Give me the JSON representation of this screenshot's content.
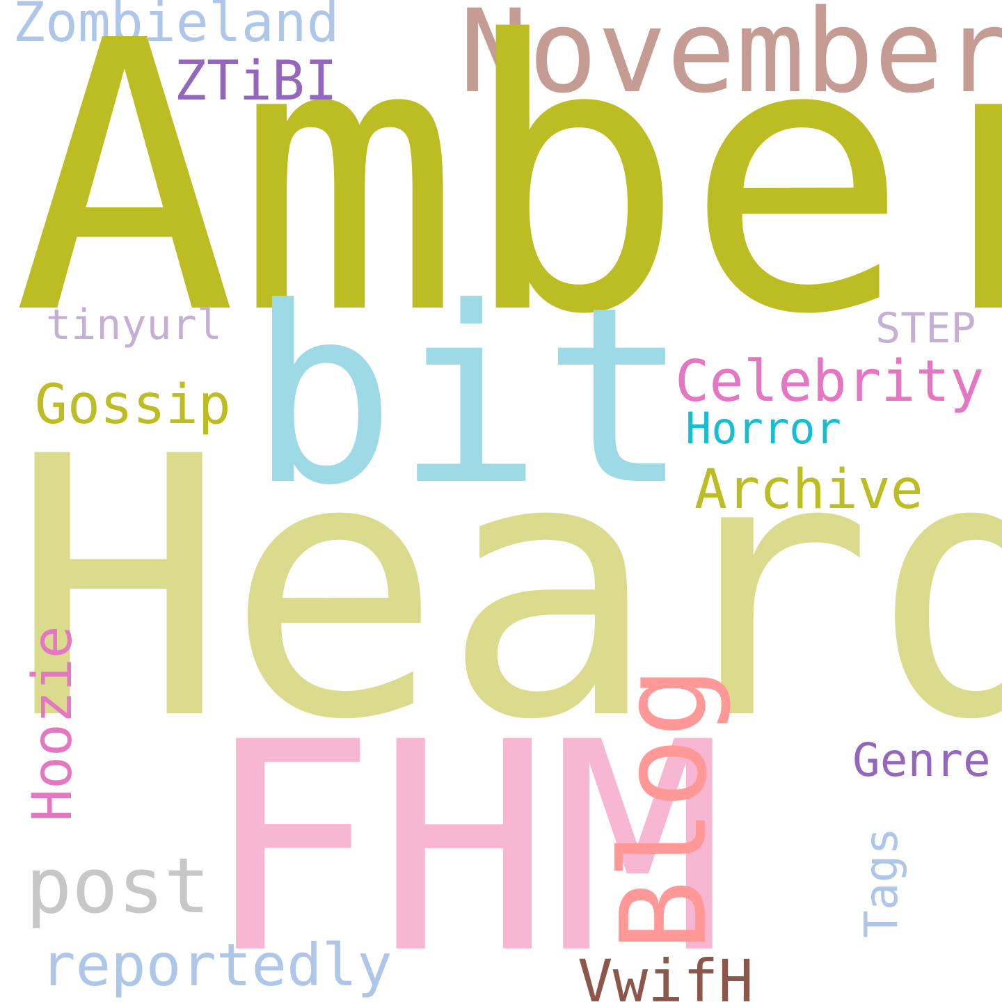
{
  "words": {
    "amber": {
      "text": "Amber",
      "color": "#bcbd22"
    },
    "heard": {
      "text": "Heard",
      "color": "#dbdb8d"
    },
    "fhm": {
      "text": "FHM",
      "color": "#f7b6d2"
    },
    "bit": {
      "text": "bit",
      "color": "#9edae5"
    },
    "november": {
      "text": "November",
      "color": "#c49c94"
    },
    "blog": {
      "text": "Blog",
      "color": "#ff9896"
    },
    "post": {
      "text": "post",
      "color": "#c7c7c7"
    },
    "celebrity": {
      "text": "Celebrity",
      "color": "#e377c2"
    },
    "zombieland": {
      "text": "Zombieland",
      "color": "#aec7e8"
    },
    "gossip": {
      "text": "Gossip",
      "color": "#bcbd22"
    },
    "archive": {
      "text": "Archive",
      "color": "#bcbd22"
    },
    "ztibi": {
      "text": "ZTiBI",
      "color": "#9467bd"
    },
    "hoozie": {
      "text": "Hoozie",
      "color": "#e377c2"
    },
    "reportedly": {
      "text": "reportedly",
      "color": "#aec7e8"
    },
    "vwifh": {
      "text": "VwifH",
      "color": "#8c564b"
    },
    "genre": {
      "text": "Genre",
      "color": "#9467bd"
    },
    "tags": {
      "text": "Tags",
      "color": "#aec7e8"
    },
    "horror": {
      "text": "Horror",
      "color": "#17becf"
    },
    "tinyurl": {
      "text": "tinyurl",
      "color": "#c5b0d5"
    },
    "step": {
      "text": "STEP",
      "color": "#c5b0d5"
    }
  }
}
